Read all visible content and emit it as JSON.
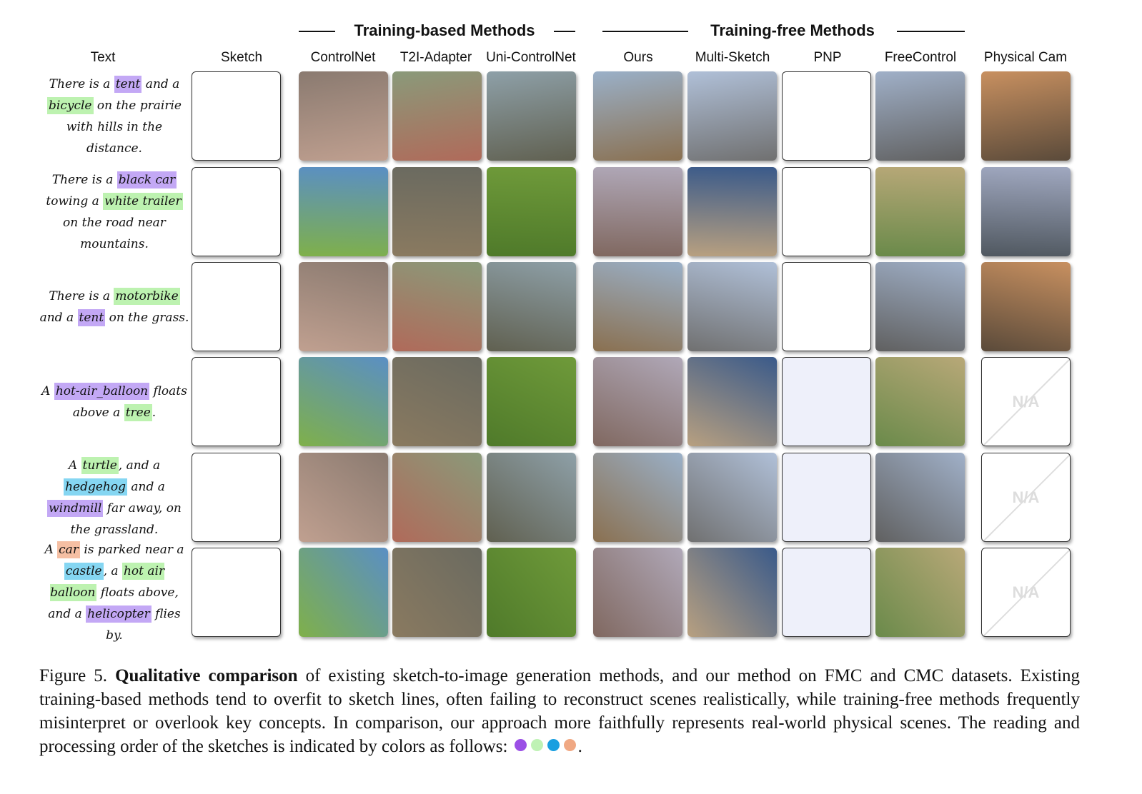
{
  "groups": [
    "Training-based Methods",
    "Training-free Methods"
  ],
  "columns": [
    "Text",
    "Sketch",
    "ControlNet",
    "T2I-Adapter",
    "Uni-ControlNet",
    "Ours",
    "Multi-Sketch",
    "PNP",
    "FreeControl",
    "Physical Cam"
  ],
  "rows": [
    {
      "segments": [
        {
          "text": "There is a "
        },
        {
          "text": "tent",
          "highlight": "#c3a8f5"
        },
        {
          "text": " and a "
        },
        {
          "text": "bicycle",
          "highlight": "#bdf2b0"
        },
        {
          "text": " on the prairie with hills in the distance."
        }
      ]
    },
    {
      "segments": [
        {
          "text": "There is a "
        },
        {
          "text": "black car",
          "highlight": "#c3a8f5"
        },
        {
          "text": " towing a "
        },
        {
          "text": "white trailer",
          "highlight": "#bdf2b0"
        },
        {
          "text": " on the road near mountains."
        }
      ]
    },
    {
      "segments": [
        {
          "text": "There is a "
        },
        {
          "text": "motorbike",
          "highlight": "#bdf2b0"
        },
        {
          "text": " and a "
        },
        {
          "text": "tent",
          "highlight": "#c3a8f5"
        },
        {
          "text": " on the grass."
        }
      ]
    },
    {
      "segments": [
        {
          "text": "A "
        },
        {
          "text": "hot-air_balloon",
          "highlight": "#c3a8f5"
        },
        {
          "text": " floats above a "
        },
        {
          "text": "tree",
          "highlight": "#bdf2b0"
        },
        {
          "text": "."
        }
      ],
      "physical_cam": "N/A"
    },
    {
      "segments": [
        {
          "text": "A "
        },
        {
          "text": "turtle",
          "highlight": "#bdf2b0"
        },
        {
          "text": ", and a "
        },
        {
          "text": "hedgehog",
          "highlight": "#85d6f2"
        },
        {
          "text": " and a "
        },
        {
          "text": "windmill",
          "highlight": "#c3a8f5"
        },
        {
          "text": " far away, on the grassland."
        }
      ],
      "physical_cam": "N/A"
    },
    {
      "segments": [
        {
          "text": "A "
        },
        {
          "text": "car",
          "highlight": "#f5bfa3"
        },
        {
          "text": " is parked near a "
        },
        {
          "text": "castle",
          "highlight": "#85d6f2"
        },
        {
          "text": ", a "
        },
        {
          "text": "hot air balloon",
          "highlight": "#bdf2b0"
        },
        {
          "text": " floats above, and a "
        },
        {
          "text": "helicopter",
          "highlight": "#c3a8f5"
        },
        {
          "text": " flies by."
        }
      ],
      "physical_cam": "N/A"
    }
  ],
  "caption": {
    "label": "Figure 5.",
    "bold": "Qualitative comparison",
    "text": "of existing sketch-to-image generation methods, and our method on FMC and CMC datasets. Existing training-based methods tend to overfit to sketch lines, often failing to reconstruct scenes realistically, while training-free methods frequently misinterpret or overlook key concepts. In comparison, our approach more faithfully represents real-world physical scenes. The reading and processing order of the sketches is indicated by colors as follows:",
    "order_colors": [
      "#9b4fe6",
      "#bff2b5",
      "#1a9fe0",
      "#f0a883"
    ],
    "end": "."
  }
}
